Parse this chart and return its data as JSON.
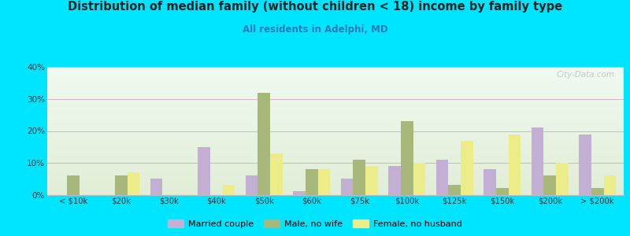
{
  "title": "Distribution of median family (without children < 18) income by family type",
  "subtitle": "All residents in Adelphi, MD",
  "categories": [
    "< $10k",
    "$20k",
    "$30k",
    "$40k",
    "$50k",
    "$60k",
    "$75k",
    "$100k",
    "$125k",
    "$150k",
    "$200k",
    "> $200k"
  ],
  "married_couple": [
    0,
    0,
    5,
    15,
    6,
    1,
    5,
    9,
    11,
    8,
    21,
    19
  ],
  "male_no_wife": [
    6,
    6,
    0,
    0,
    32,
    8,
    11,
    23,
    3,
    2,
    6,
    2
  ],
  "female_no_husband": [
    0,
    7,
    0,
    3,
    13,
    8,
    9,
    10,
    17,
    19,
    10,
    6
  ],
  "married_color": "#c4afd4",
  "male_color": "#a8b87a",
  "female_color": "#ecec88",
  "background_outer": "#00e5ff",
  "title_color": "#222222",
  "subtitle_color": "#2a7ab5",
  "ylim": [
    0,
    40
  ],
  "yticks": [
    0,
    10,
    20,
    30,
    40
  ],
  "watermark": "City-Data.com",
  "legend_labels": [
    "Married couple",
    "Male, no wife",
    "Female, no husband"
  ]
}
